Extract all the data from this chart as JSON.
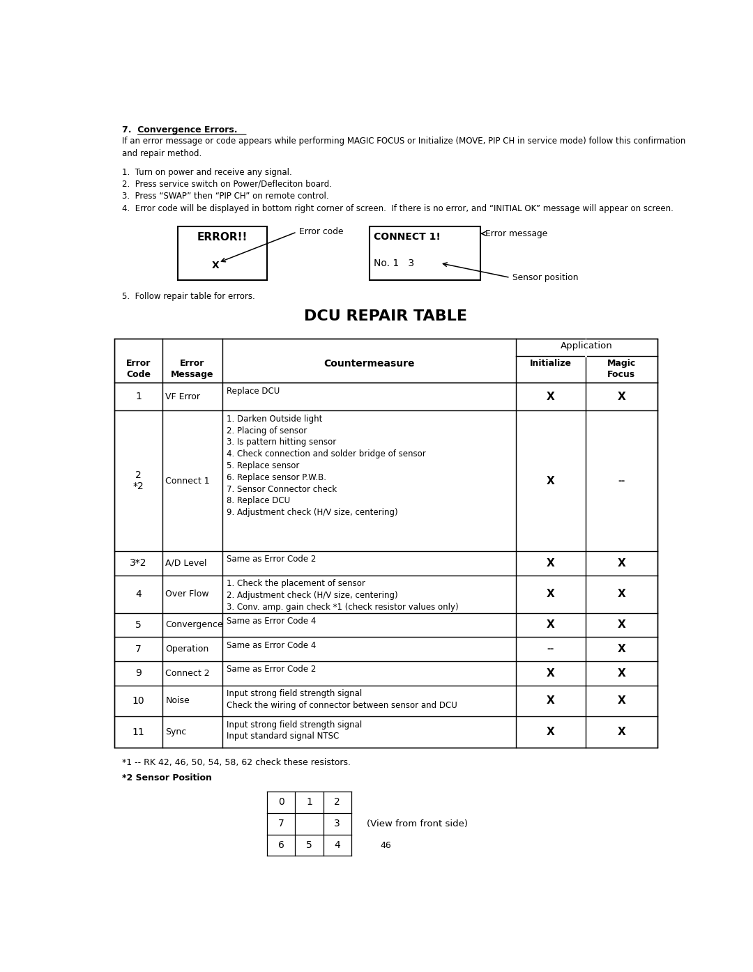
{
  "bg_color": "#ffffff",
  "text_color": "#000000",
  "page_number": "46",
  "section_title_num": "7.  ",
  "section_title_text": "Convergence Errors.",
  "section_intro": "If an error message or code appears while performing MAGIC FOCUS or Initialize (MOVE, PIP CH in service mode) follow this confirmation\nand repair method.",
  "steps": [
    "1.  Turn on power and receive any signal.",
    "2.  Press service switch on Power/Defleciton board.",
    "3.  Press “SWAP” then “PIP CH” on remote control.",
    "4.  Error code will be displayed in bottom right corner of screen.  If there is no error, and “INITIAL OK” message will appear on screen."
  ],
  "step5": "5.  Follow repair table for errors.",
  "table_title": "DCU REPAIR TABLE",
  "footnote1": "*1 -- RK 42, 46, 50, 54, 58, 62 check these resistors.",
  "footnote2": "*2 Sensor Position",
  "view_label": "(View from front side)",
  "sensor_grid": [
    [
      "0",
      "1",
      "2"
    ],
    [
      "7",
      "",
      "3"
    ],
    [
      "6",
      "5",
      "4"
    ]
  ],
  "table_rows": [
    {
      "code": "1",
      "message": "VF Error",
      "countermeasure": "Replace DCU",
      "initialize": "X",
      "magic_focus": "X"
    },
    {
      "code": "2\n*2",
      "message": "Connect 1",
      "countermeasure": "1. Darken Outside light\n2. Placing of sensor\n3. Is pattern hitting sensor\n4. Check connection and solder bridge of sensor\n5. Replace sensor\n6. Replace sensor P.W.B.\n7. Sensor Connector check\n8. Replace DCU\n9. Adjustment check (H/V size, centering)",
      "initialize": "X",
      "magic_focus": "--"
    },
    {
      "code": "3*2",
      "message": "A/D Level",
      "countermeasure": "Same as Error Code 2",
      "initialize": "X",
      "magic_focus": "X"
    },
    {
      "code": "4",
      "message": "Over Flow",
      "countermeasure": "1. Check the placement of sensor\n2. Adjustment check (H/V size, centering)\n3. Conv. amp. gain check *1 (check resistor values only)",
      "initialize": "X",
      "magic_focus": "X"
    },
    {
      "code": "5",
      "message": "Convergence",
      "countermeasure": "Same as Error Code 4",
      "initialize": "X",
      "magic_focus": "X"
    },
    {
      "code": "7",
      "message": "Operation",
      "countermeasure": "Same as Error Code 4",
      "initialize": "--",
      "magic_focus": "X"
    },
    {
      "code": "9",
      "message": "Connect 2",
      "countermeasure": "Same as Error Code 2",
      "initialize": "X",
      "magic_focus": "X"
    },
    {
      "code": "10",
      "message": "Noise",
      "countermeasure": "Input strong field strength signal\nCheck the wiring of connector between sensor and DCU",
      "initialize": "X",
      "magic_focus": "X"
    },
    {
      "code": "11",
      "message": "Sync",
      "countermeasure": "Input strong field strength signal\nInput standard signal NTSC",
      "initialize": "X",
      "magic_focus": "X"
    }
  ]
}
